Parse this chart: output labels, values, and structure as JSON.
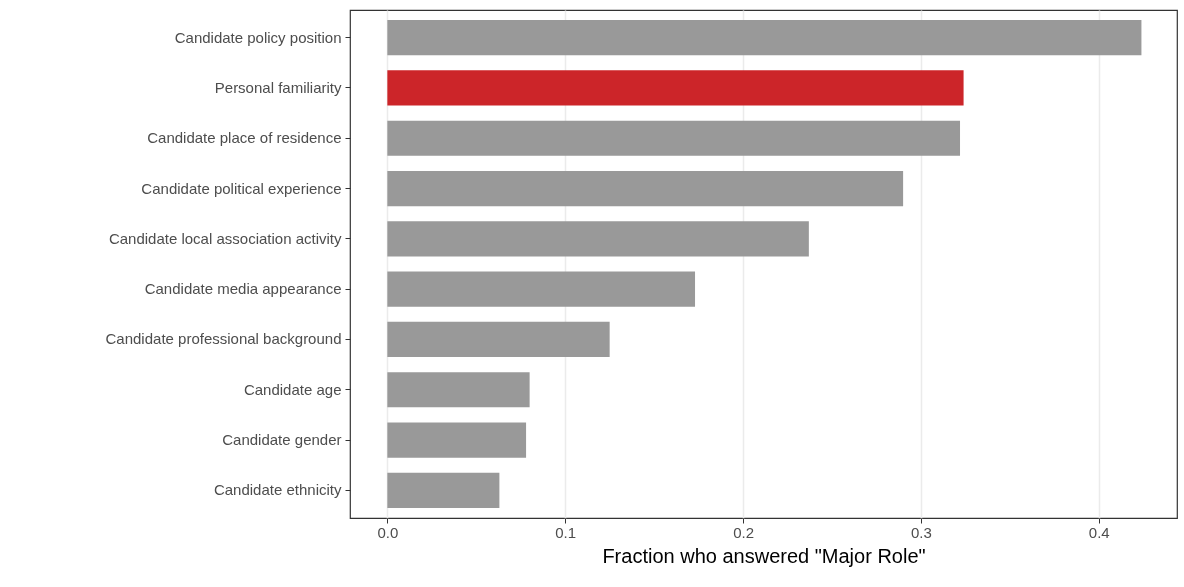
{
  "chart_data": {
    "type": "bar",
    "orientation": "horizontal",
    "xlabel": "Fraction who answered \"Major Role\"",
    "categories": [
      "Candidate policy position",
      "Personal familiarity",
      "Candidate place of residence",
      "Candidate political experience",
      "Candidate local association activity",
      "Candidate media appearance",
      "Candidate professional background",
      "Candidate age",
      "Candidate gender",
      "Candidate ethnicity"
    ],
    "values": [
      0.424,
      0.324,
      0.322,
      0.29,
      0.237,
      0.173,
      0.125,
      0.08,
      0.078,
      0.063
    ],
    "colors": [
      "#999999",
      "#cc2529",
      "#999999",
      "#999999",
      "#999999",
      "#999999",
      "#999999",
      "#999999",
      "#999999",
      "#999999"
    ],
    "xlim": [
      -0.021,
      0.444
    ],
    "xticks": [
      {
        "value": 0,
        "label": "0.0"
      },
      0.1,
      0.2,
      0.3,
      0.4
    ],
    "grid": "x"
  }
}
